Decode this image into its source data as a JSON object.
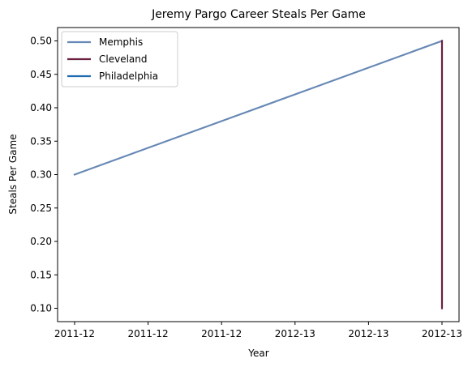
{
  "chart_data": {
    "type": "line",
    "title": "Jeremy Pargo Career Steals Per Game",
    "xlabel": "Year",
    "ylabel": "Steals Per Game",
    "x_ticks": [
      "2011-12",
      "2011-12",
      "2011-12",
      "2012-13",
      "2012-13",
      "2012-13"
    ],
    "x_range": [
      0,
      1
    ],
    "ylim": [
      0.08,
      0.52
    ],
    "y_ticks": [
      0.1,
      0.15,
      0.2,
      0.25,
      0.3,
      0.35,
      0.4,
      0.45,
      0.5
    ],
    "y_tick_labels": [
      "0.10",
      "0.15",
      "0.20",
      "0.25",
      "0.30",
      "0.35",
      "0.40",
      "0.45",
      "0.50"
    ],
    "grid": false,
    "legend_position": "upper-left",
    "series": [
      {
        "name": "Memphis",
        "color": "#6688B5",
        "points": [
          {
            "x": "2011-12",
            "y": 0.3
          },
          {
            "x": "2012-13",
            "y": 0.5
          }
        ]
      },
      {
        "name": "Cleveland",
        "color": "#6B2040",
        "points": [
          {
            "x": "2012-13",
            "y": 0.5
          },
          {
            "x": "2012-13",
            "y": 0.1
          }
        ]
      },
      {
        "name": "Philadelphia",
        "color": "#1F6BB0",
        "points": []
      }
    ]
  }
}
